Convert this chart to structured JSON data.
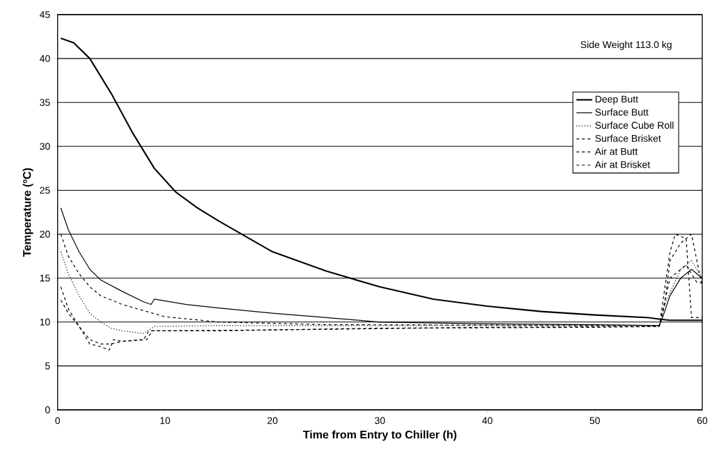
{
  "chart_data": {
    "type": "line",
    "xlabel": "Time from Entry to Chiller (h)",
    "ylabel": "Temperature (ºC)",
    "annotations": [
      "Side Weight 113.0 kg"
    ],
    "xlim": [
      0,
      60
    ],
    "xticks": [
      0,
      10,
      20,
      30,
      40,
      50,
      60
    ],
    "ylim": [
      0,
      45
    ],
    "yticks": [
      0,
      5,
      10,
      15,
      20,
      25,
      30,
      35,
      40,
      45
    ],
    "grid": "y",
    "legend": "right",
    "marker": "none",
    "series": [
      {
        "name": "Deep Butt",
        "color": "#000000",
        "line_style": "solid",
        "x": [
          0.3,
          1.5,
          3,
          5,
          7,
          9,
          11,
          13,
          15,
          20,
          25,
          30,
          35,
          40,
          45,
          50,
          55,
          56.2,
          57,
          60
        ],
        "values": [
          42.3,
          41.8,
          40,
          36,
          31.5,
          27.5,
          24.8,
          23,
          21.5,
          18,
          15.8,
          14,
          12.6,
          11.8,
          11.2,
          10.8,
          10.5,
          10.3,
          10.2,
          10.2
        ]
      },
      {
        "name": "Surface Butt",
        "color": "#000000",
        "line_style": "solid",
        "x": [
          0.3,
          1,
          2,
          3,
          4,
          6,
          8,
          8.7,
          9,
          12,
          15,
          20,
          25,
          30,
          40,
          50,
          56,
          56.3,
          57,
          58,
          59,
          60
        ],
        "values": [
          23,
          20.5,
          18,
          16,
          14.8,
          13.5,
          12.3,
          12,
          12.6,
          12,
          11.6,
          11,
          10.5,
          10,
          9.8,
          9.7,
          9.6,
          10.5,
          13,
          15,
          16,
          15
        ]
      },
      {
        "name": "Surface Cube Roll",
        "color": "#000000",
        "line_style": "dotted",
        "x": [
          0.3,
          1,
          2,
          3,
          4,
          5,
          6,
          8,
          9,
          15,
          30,
          56,
          56.5,
          58,
          59,
          60
        ],
        "values": [
          18,
          15.5,
          13,
          11,
          10,
          9.3,
          9,
          8.7,
          9.5,
          9.6,
          9.6,
          9.6,
          12,
          16,
          17,
          15
        ]
      },
      {
        "name": "Surface Brisket",
        "color": "#000000",
        "line_style": "dashed",
        "x": [
          0.3,
          1,
          2,
          3,
          4,
          6,
          8,
          10,
          15,
          25,
          56,
          57,
          58.5,
          59.5,
          60
        ],
        "values": [
          20,
          17.5,
          15.5,
          14,
          13,
          12,
          11.3,
          10.6,
          10,
          9.7,
          9.6,
          15,
          16.5,
          14.5,
          14.5
        ]
      },
      {
        "name": "Air at Butt",
        "color": "#000000",
        "line_style": "dashed",
        "x": [
          0.3,
          1,
          2,
          3,
          4,
          5,
          6,
          8,
          8.5,
          10,
          20,
          40,
          56,
          56.5,
          57,
          58,
          59,
          60
        ],
        "values": [
          14,
          11.5,
          9.5,
          8,
          7.5,
          7.5,
          7.8,
          8,
          9,
          9,
          9.1,
          9.4,
          9.5,
          12,
          17,
          19,
          20,
          14
        ]
      },
      {
        "name": "Air at Brisket",
        "color": "#000000",
        "line_style": "dashed",
        "x": [
          0.3,
          1,
          2,
          3,
          4,
          4.8,
          5.2,
          6,
          8.3,
          8.8,
          15,
          30,
          50,
          56,
          57,
          57.5,
          58.5,
          59,
          60
        ],
        "values": [
          12.5,
          11,
          9.5,
          7.5,
          7.2,
          6.8,
          8,
          7.8,
          8,
          9,
          9,
          9.3,
          9.4,
          9.5,
          18,
          20,
          19.5,
          10.5,
          10.5
        ]
      }
    ]
  }
}
